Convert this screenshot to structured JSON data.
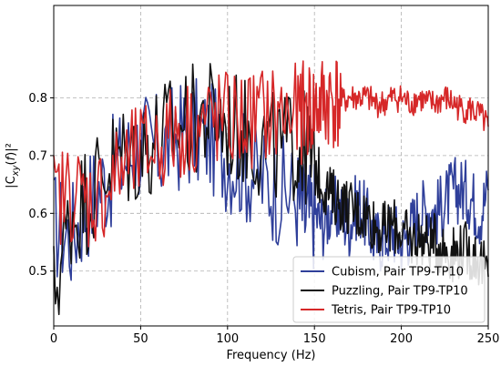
{
  "chart_data": {
    "type": "line",
    "xlabel": "Frequency (Hz)",
    "ylabel": "|C_xy(f)|²",
    "xlim": [
      0,
      250
    ],
    "ylim": [
      0.405,
      0.96
    ],
    "xticks": [
      0,
      50,
      100,
      150,
      200,
      250
    ],
    "yticks": [
      0.5,
      0.6,
      0.7,
      0.8
    ],
    "xtick_labels": [
      "0",
      "50",
      "100",
      "150",
      "200",
      "250"
    ],
    "ytick_labels": [
      "0.5",
      "0.6",
      "0.7",
      "0.8"
    ],
    "grid": true,
    "legend_position": "lower-right",
    "series": [
      {
        "name": "Cubism, Pair TP9-TP10",
        "color": "#2f3f9a",
        "x": [
          0,
          10,
          20,
          30,
          40,
          50,
          60,
          70,
          80,
          90,
          100,
          110,
          120,
          130,
          140,
          145,
          150,
          155,
          160,
          165,
          170,
          175,
          180,
          185,
          190,
          195,
          200,
          205,
          210,
          215,
          220,
          225,
          230,
          235,
          240,
          245,
          250
        ],
        "y": [
          0.58,
          0.56,
          0.62,
          0.66,
          0.69,
          0.72,
          0.71,
          0.73,
          0.74,
          0.73,
          0.7,
          0.68,
          0.66,
          0.64,
          0.63,
          0.59,
          0.6,
          0.58,
          0.61,
          0.6,
          0.58,
          0.62,
          0.59,
          0.55,
          0.56,
          0.57,
          0.55,
          0.57,
          0.6,
          0.61,
          0.6,
          0.62,
          0.64,
          0.64,
          0.63,
          0.6,
          0.64
        ]
      },
      {
        "name": "Puzzling, Pair TP9-TP10",
        "color": "#111111",
        "x": [
          0,
          10,
          20,
          30,
          40,
          50,
          60,
          70,
          80,
          90,
          100,
          110,
          120,
          130,
          140,
          145,
          150,
          155,
          160,
          165,
          170,
          175,
          180,
          185,
          190,
          195,
          200,
          205,
          210,
          215,
          220,
          225,
          230,
          235,
          240,
          245,
          250
        ],
        "y": [
          0.46,
          0.6,
          0.63,
          0.68,
          0.7,
          0.71,
          0.73,
          0.75,
          0.76,
          0.77,
          0.75,
          0.74,
          0.72,
          0.71,
          0.72,
          0.71,
          0.68,
          0.65,
          0.63,
          0.62,
          0.61,
          0.6,
          0.6,
          0.58,
          0.57,
          0.58,
          0.57,
          0.55,
          0.56,
          0.55,
          0.55,
          0.54,
          0.53,
          0.54,
          0.53,
          0.52,
          0.49
        ]
      },
      {
        "name": "Tetris, Pair TP9-TP10",
        "color": "#d62728",
        "x": [
          0,
          10,
          20,
          30,
          40,
          50,
          60,
          70,
          80,
          90,
          100,
          110,
          120,
          130,
          140,
          145,
          150,
          155,
          160,
          165,
          170,
          175,
          180,
          185,
          190,
          195,
          200,
          205,
          210,
          215,
          220,
          225,
          230,
          235,
          240,
          245,
          250
        ],
        "y": [
          0.62,
          0.64,
          0.62,
          0.64,
          0.68,
          0.7,
          0.72,
          0.74,
          0.75,
          0.76,
          0.76,
          0.76,
          0.77,
          0.77,
          0.77,
          0.78,
          0.78,
          0.79,
          0.8,
          0.79,
          0.8,
          0.8,
          0.8,
          0.79,
          0.79,
          0.8,
          0.8,
          0.79,
          0.8,
          0.79,
          0.79,
          0.8,
          0.79,
          0.78,
          0.78,
          0.77,
          0.75
        ]
      }
    ]
  }
}
